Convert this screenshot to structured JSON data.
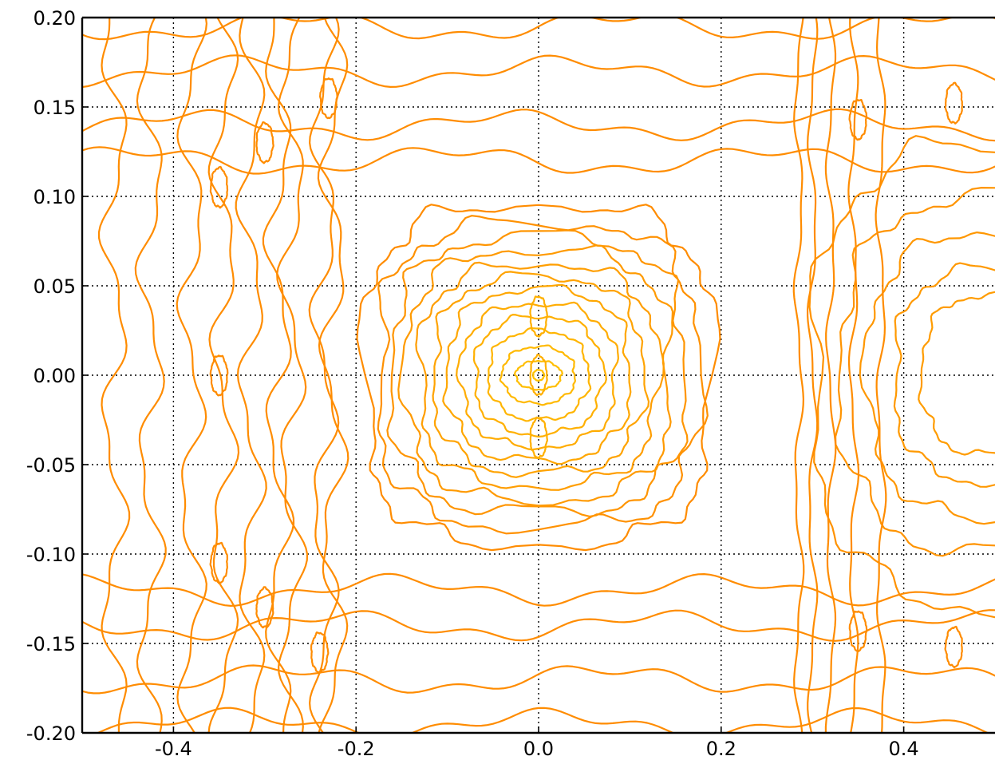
{
  "chart_data": {
    "type": "contour",
    "title": "",
    "xlabel": "",
    "ylabel": "",
    "xlim": [
      -0.5,
      0.5
    ],
    "ylim": [
      -0.2,
      0.2
    ],
    "x_ticks": [
      "-0.4",
      "-0.2",
      "0.0",
      "0.2",
      "0.4"
    ],
    "x_tick_values": [
      -0.4,
      -0.2,
      0.0,
      0.2,
      0.4
    ],
    "y_ticks": [
      "0.20",
      "0.15",
      "0.10",
      "0.05",
      "0.00",
      "-0.05",
      "-0.10",
      "-0.15",
      "-0.20"
    ],
    "y_tick_values": [
      0.2,
      0.15,
      0.1,
      0.05,
      0.0,
      -0.05,
      -0.1,
      -0.15,
      -0.2
    ],
    "grid": true,
    "colors": {
      "outer_contour": "#ff8c00",
      "inner_contour": "#ffc400",
      "grid": "#000000"
    },
    "central_peak": {
      "center": [
        0.0,
        0.0
      ],
      "level_half_widths": [
        [
          0.19,
          0.095
        ],
        [
          0.175,
          0.085
        ],
        [
          0.16,
          0.077
        ],
        [
          0.145,
          0.07
        ],
        [
          0.13,
          0.062
        ],
        [
          0.115,
          0.055
        ],
        [
          0.1,
          0.048
        ],
        [
          0.085,
          0.04
        ],
        [
          0.07,
          0.033
        ],
        [
          0.055,
          0.025
        ],
        [
          0.04,
          0.016
        ],
        [
          0.025,
          0.008
        ],
        [
          0.006,
          0.003
        ]
      ]
    },
    "right_lobe": {
      "center": [
        0.5,
        0.0
      ],
      "level_half_widths": [
        [
          0.2,
          0.13
        ],
        [
          0.17,
          0.1
        ],
        [
          0.14,
          0.08
        ],
        [
          0.11,
          0.06
        ],
        [
          0.08,
          0.045
        ]
      ]
    },
    "vertical_band_lines_x": [
      -0.465,
      -0.425,
      -0.38,
      -0.345,
      -0.315,
      -0.285,
      -0.27,
      -0.235,
      -0.225
    ],
    "right_band_lines_x": [
      0.285,
      0.3,
      0.32,
      0.345,
      0.375
    ],
    "horizontal_band_lines_y": [
      0.195,
      0.17,
      0.14,
      0.12,
      -0.12,
      -0.14,
      -0.17,
      -0.195
    ],
    "small_islands": [
      [
        -0.23,
        0.155
      ],
      [
        -0.24,
        -0.155
      ],
      [
        -0.3,
        0.13
      ],
      [
        -0.3,
        -0.13
      ],
      [
        -0.35,
        0.105
      ],
      [
        -0.35,
        -0.105
      ],
      [
        -0.35,
        0.0
      ],
      [
        0.0,
        0.033
      ],
      [
        0.0,
        -0.035
      ],
      [
        0.0,
        0.0
      ],
      [
        0.455,
        0.152
      ],
      [
        0.455,
        -0.152
      ],
      [
        0.35,
        0.143
      ],
      [
        0.35,
        -0.143
      ]
    ]
  }
}
